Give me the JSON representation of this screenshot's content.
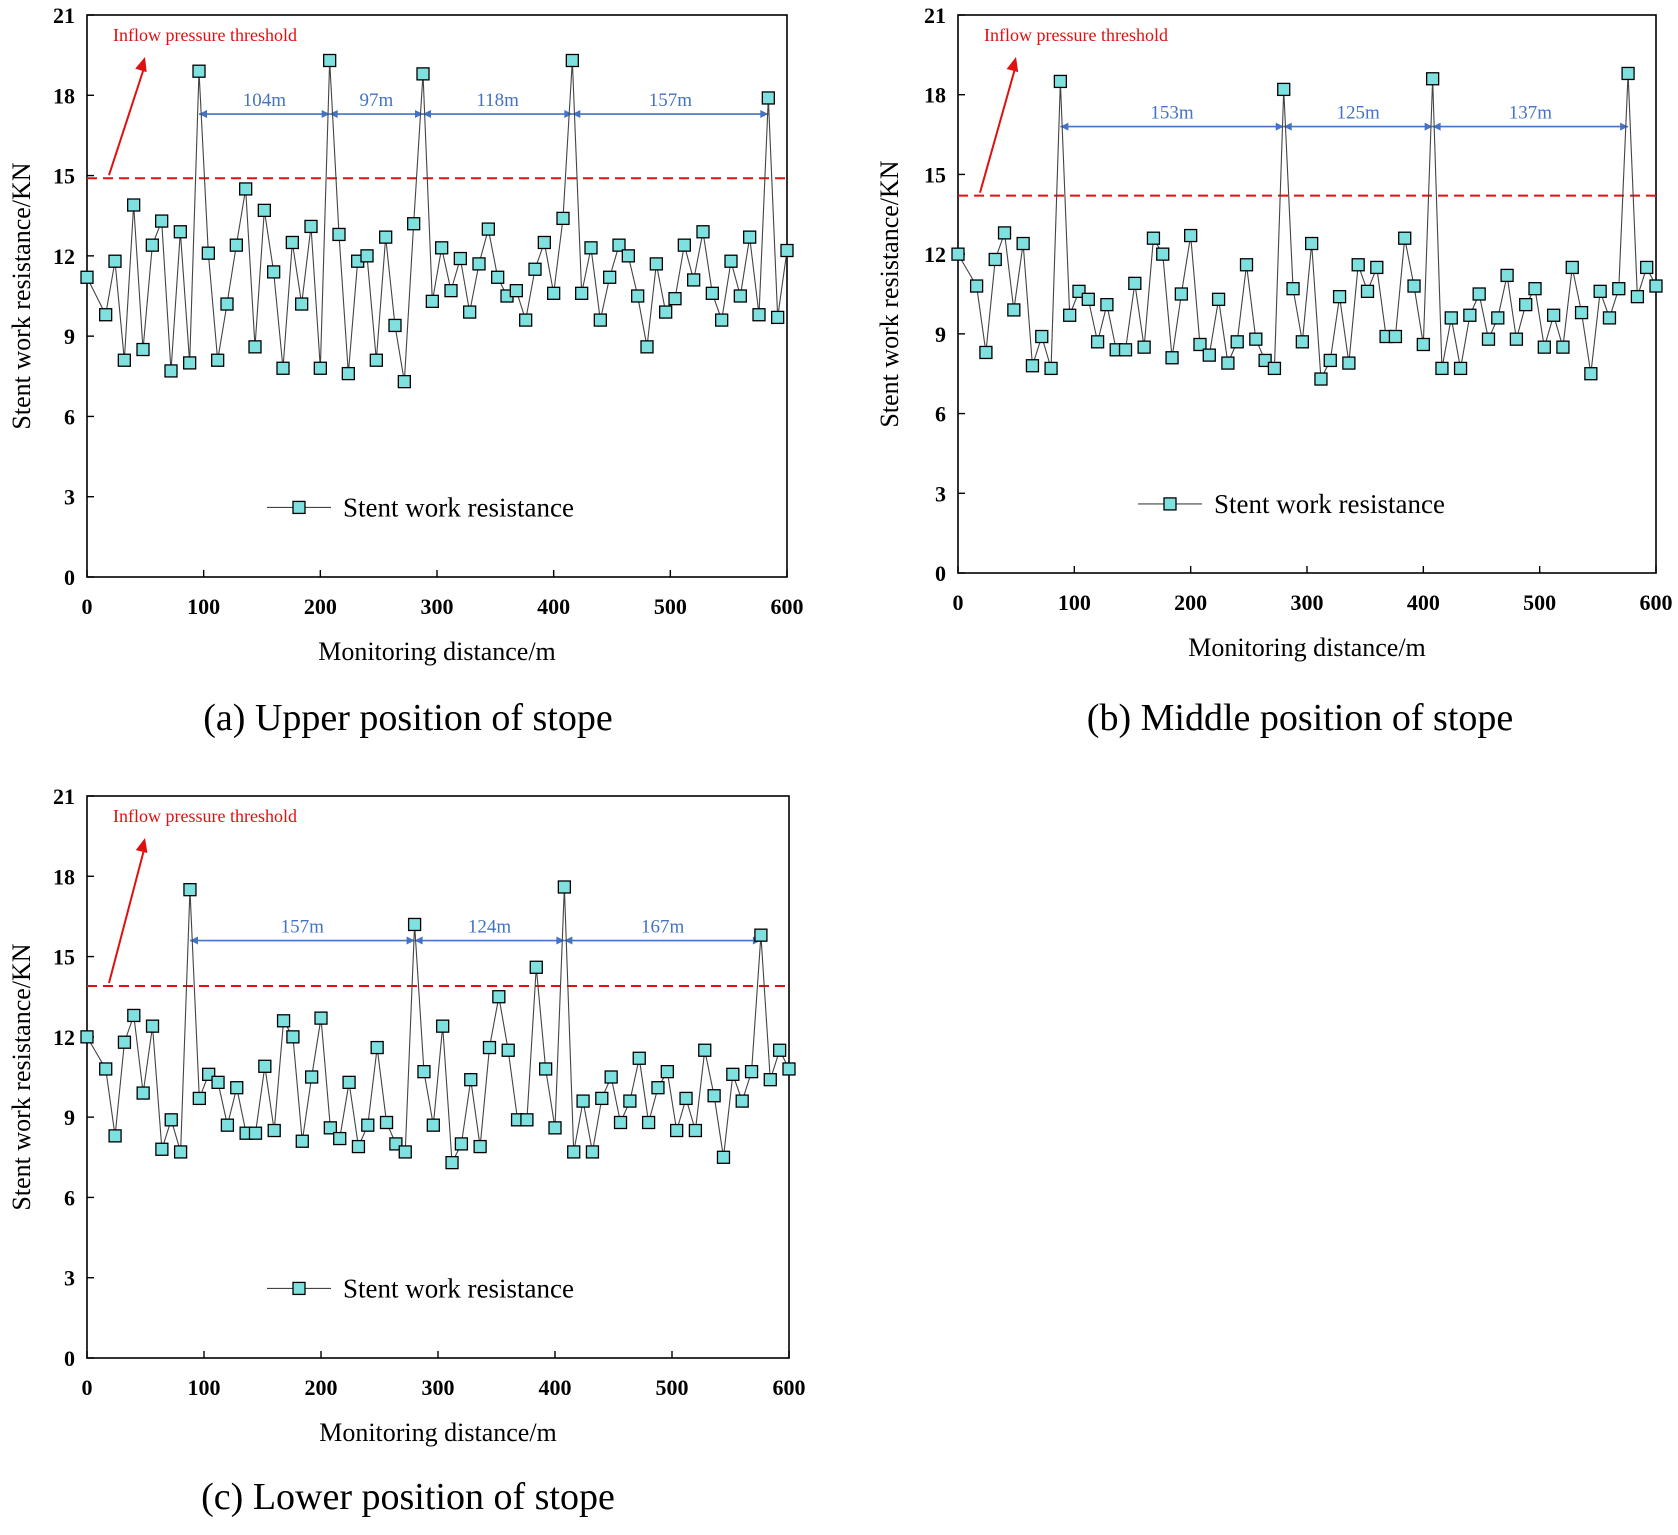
{
  "figure": {
    "captions": [
      "(a) Upper position of stope",
      "(b) Middle position of stope",
      "(c) Lower position of stope"
    ]
  },
  "styles": {
    "marker_fill": "#7fe0e0",
    "marker_stroke": "#000000",
    "line_color": "#444444",
    "threshold_color": "#e01010",
    "interval_color": "#4472c4"
  },
  "chart_data": [
    {
      "type": "line",
      "title": "(a) Upper position of stope",
      "xlabel": "Monitoring distance/m",
      "ylabel": "Stent work resistance/KN",
      "xlim": [
        0,
        600
      ],
      "ylim": [
        0,
        21
      ],
      "xticks": [
        0,
        100,
        200,
        300,
        400,
        500,
        600
      ],
      "yticks": [
        0,
        3,
        6,
        9,
        12,
        15,
        18,
        21
      ],
      "grid": false,
      "legend": {
        "label": "Stent work resistance",
        "position": "center"
      },
      "threshold": {
        "value": 14.9,
        "label": "Inflow pressure threshold"
      },
      "intervals": [
        {
          "from": 96,
          "to": 208,
          "label": "104m"
        },
        {
          "from": 208,
          "to": 288,
          "label": "97m"
        },
        {
          "from": 288,
          "to": 416,
          "label": "118m"
        },
        {
          "from": 416,
          "to": 584,
          "label": "157m"
        }
      ],
      "series": [
        {
          "name": "Stent work resistance",
          "x": [
            0,
            16,
            24,
            32,
            40,
            48,
            56,
            64,
            72,
            80,
            88,
            96,
            104,
            112,
            120,
            128,
            136,
            144,
            152,
            160,
            168,
            176,
            184,
            192,
            200,
            208,
            216,
            224,
            232,
            240,
            248,
            256,
            264,
            272,
            280,
            288,
            296,
            304,
            312,
            320,
            328,
            336,
            344,
            352,
            360,
            368,
            376,
            384,
            392,
            400,
            408,
            416,
            424,
            432,
            440,
            448,
            456,
            464,
            472,
            480,
            488,
            496,
            504,
            512,
            520,
            528,
            536,
            544,
            552,
            560,
            568,
            576,
            584,
            592,
            600
          ],
          "y": [
            11.2,
            9.8,
            11.8,
            8.1,
            13.9,
            8.5,
            12.4,
            13.3,
            7.7,
            12.9,
            8.0,
            18.9,
            12.1,
            8.1,
            10.2,
            12.4,
            14.5,
            8.6,
            13.7,
            11.4,
            7.8,
            12.5,
            10.2,
            13.1,
            7.8,
            19.3,
            12.8,
            7.6,
            11.8,
            12.0,
            8.1,
            12.7,
            9.4,
            7.3,
            13.2,
            18.8,
            10.3,
            12.3,
            10.7,
            11.9,
            9.9,
            11.7,
            13.0,
            11.2,
            10.5,
            10.7,
            9.6,
            11.5,
            12.5,
            10.6,
            13.4,
            19.3,
            10.6,
            12.3,
            9.6,
            11.2,
            12.4,
            12.0,
            10.5,
            8.6,
            11.7,
            9.9,
            10.4,
            12.4,
            11.1,
            12.9,
            10.6,
            9.6,
            11.8,
            10.5,
            12.7,
            9.8,
            17.9,
            9.7,
            12.2
          ]
        }
      ]
    },
    {
      "type": "line",
      "title": "(b) Middle position of stope",
      "xlabel": "Monitoring distance/m",
      "ylabel": "Stent work resistance/KN",
      "xlim": [
        0,
        600
      ],
      "ylim": [
        0,
        21
      ],
      "xticks": [
        0,
        100,
        200,
        300,
        400,
        500,
        600
      ],
      "yticks": [
        0,
        3,
        6,
        9,
        12,
        15,
        18,
        21
      ],
      "grid": false,
      "legend": {
        "label": "Stent work resistance",
        "position": "center"
      },
      "threshold": {
        "value": 14.2,
        "label": "Inflow pressure threshold"
      },
      "intervals": [
        {
          "from": 88,
          "to": 280,
          "label": "153m"
        },
        {
          "from": 280,
          "to": 408,
          "label": "125m"
        },
        {
          "from": 408,
          "to": 576,
          "label": "137m"
        }
      ],
      "series": [
        {
          "name": "Stent work resistance",
          "x": [
            0,
            16,
            24,
            32,
            40,
            48,
            56,
            64,
            72,
            80,
            88,
            96,
            104,
            112,
            120,
            128,
            136,
            144,
            152,
            160,
            168,
            176,
            184,
            192,
            200,
            208,
            216,
            224,
            232,
            240,
            248,
            256,
            264,
            272,
            280,
            288,
            296,
            304,
            312,
            320,
            328,
            336,
            344,
            352,
            360,
            368,
            376,
            384,
            392,
            400,
            408,
            416,
            424,
            432,
            440,
            448,
            456,
            464,
            472,
            480,
            488,
            496,
            504,
            512,
            520,
            528,
            536,
            544,
            552,
            560,
            568,
            576,
            584,
            592,
            600
          ],
          "y": [
            12.0,
            10.8,
            8.3,
            11.8,
            12.8,
            9.9,
            12.4,
            7.8,
            8.9,
            7.7,
            18.5,
            9.7,
            10.6,
            10.3,
            8.7,
            10.1,
            8.4,
            8.4,
            10.9,
            8.5,
            12.6,
            12.0,
            8.1,
            10.5,
            12.7,
            8.6,
            8.2,
            10.3,
            7.9,
            8.7,
            11.6,
            8.8,
            8.0,
            7.7,
            18.2,
            10.7,
            8.7,
            12.4,
            7.3,
            8.0,
            10.4,
            7.9,
            11.6,
            10.6,
            11.5,
            8.9,
            8.9,
            12.6,
            10.8,
            8.6,
            18.6,
            7.7,
            9.6,
            7.7,
            9.7,
            10.5,
            8.8,
            9.6,
            11.2,
            8.8,
            10.1,
            10.7,
            8.5,
            9.7,
            8.5,
            11.5,
            9.8,
            7.5,
            10.6,
            9.6,
            10.7,
            18.8,
            10.4,
            11.5,
            10.8
          ]
        }
      ]
    },
    {
      "type": "line",
      "title": "(c) Lower position of stope",
      "xlabel": "Monitoring distance/m",
      "ylabel": "Stent work resistance/KN",
      "xlim": [
        0,
        600
      ],
      "ylim": [
        0,
        21
      ],
      "xticks": [
        0,
        100,
        200,
        300,
        400,
        500,
        600
      ],
      "yticks": [
        0,
        3,
        6,
        9,
        12,
        15,
        18,
        21
      ],
      "grid": false,
      "legend": {
        "label": "Stent work resistance",
        "position": "center"
      },
      "threshold": {
        "value": 13.9,
        "label": "Inflow pressure threshold"
      },
      "intervals": [
        {
          "from": 88,
          "to": 280,
          "label": "157m"
        },
        {
          "from": 280,
          "to": 408,
          "label": "124m"
        },
        {
          "from": 408,
          "to": 576,
          "label": "167m"
        }
      ],
      "series": [
        {
          "name": "Stent work resistance",
          "x": [
            0,
            16,
            24,
            32,
            40,
            48,
            56,
            64,
            72,
            80,
            88,
            96,
            104,
            112,
            120,
            128,
            136,
            144,
            152,
            160,
            168,
            176,
            184,
            192,
            200,
            208,
            216,
            224,
            232,
            240,
            248,
            256,
            264,
            272,
            280,
            288,
            296,
            304,
            312,
            320,
            328,
            336,
            344,
            352,
            360,
            368,
            376,
            384,
            392,
            400,
            408,
            416,
            424,
            432,
            440,
            448,
            456,
            464,
            472,
            480,
            488,
            496,
            504,
            512,
            520,
            528,
            536,
            544,
            552,
            560,
            568,
            576,
            584,
            592,
            600
          ],
          "y": [
            12.0,
            10.8,
            8.3,
            11.8,
            12.8,
            9.9,
            12.4,
            7.8,
            8.9,
            7.7,
            17.5,
            9.7,
            10.6,
            10.3,
            8.7,
            10.1,
            8.4,
            8.4,
            10.9,
            8.5,
            12.6,
            12.0,
            8.1,
            10.5,
            12.7,
            8.6,
            8.2,
            10.3,
            7.9,
            8.7,
            11.6,
            8.8,
            8.0,
            7.7,
            16.2,
            10.7,
            8.7,
            12.4,
            7.3,
            8.0,
            10.4,
            7.9,
            11.6,
            13.5,
            11.5,
            8.9,
            8.9,
            14.6,
            10.8,
            8.6,
            17.6,
            7.7,
            9.6,
            7.7,
            9.7,
            10.5,
            8.8,
            9.6,
            11.2,
            8.8,
            10.1,
            10.7,
            8.5,
            9.7,
            8.5,
            11.5,
            9.8,
            7.5,
            10.6,
            9.6,
            10.7,
            15.8,
            10.4,
            11.5,
            10.8
          ]
        }
      ]
    }
  ]
}
